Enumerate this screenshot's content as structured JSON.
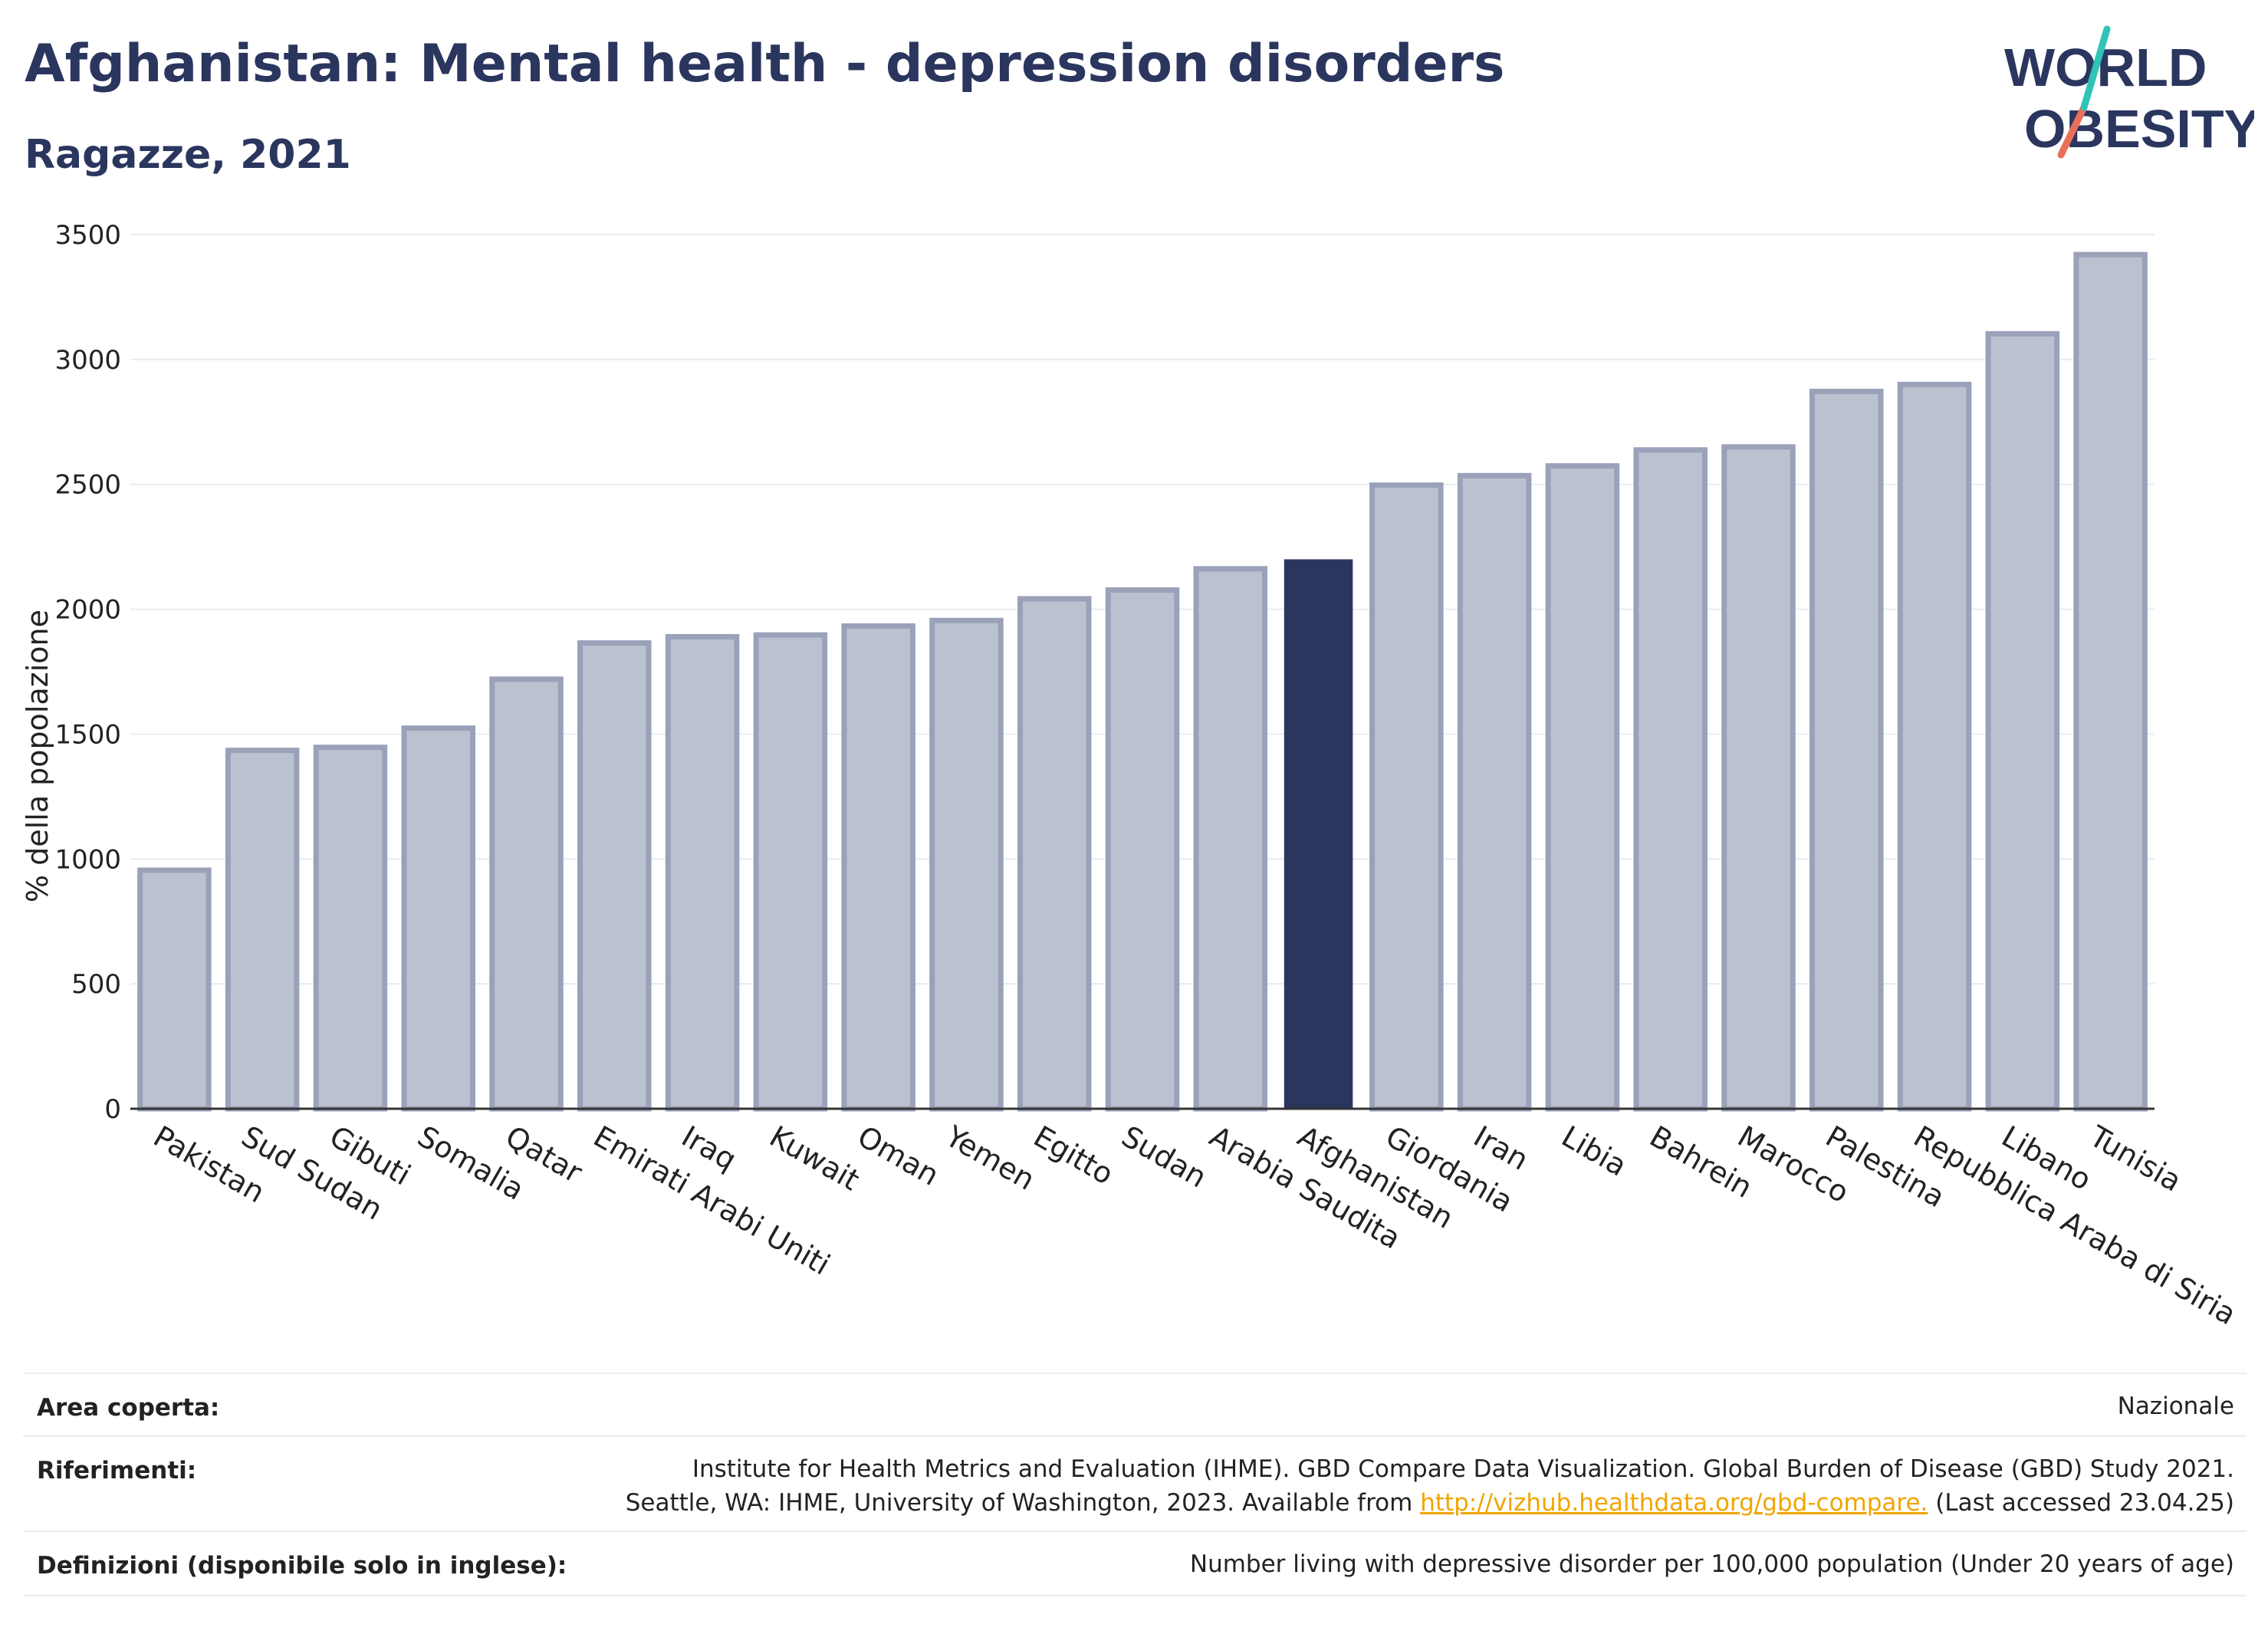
{
  "header": {
    "title": "Afghanistan: Mental health - depression disorders",
    "subtitle": "Ragazze, 2021"
  },
  "logo": {
    "line1": "WORLD",
    "line2": "OBESITY",
    "accent_teal": "#2ec4b6",
    "accent_coral": "#e8705a",
    "text_color": "#2b365f"
  },
  "chart_data": {
    "type": "bar",
    "title": "Afghanistan: Mental health - depression disorders",
    "subtitle": "Ragazze, 2021",
    "xlabel": "",
    "ylabel": "% della popolazione",
    "ylim": [
      0,
      3500
    ],
    "yticks": [
      0,
      500,
      1000,
      1500,
      2000,
      2500,
      3000,
      3500
    ],
    "grid": true,
    "highlight": "Afghanistan",
    "colors": {
      "bar": "#bcc1cf",
      "bar_border": "#9aa1b9",
      "highlight": "#2b365f"
    },
    "categories": [
      "Pakistan",
      "Sud Sudan",
      "Gibuti",
      "Somalia",
      "Qatar",
      "Emirati Arabi Uniti",
      "Iraq",
      "Kuwait",
      "Oman",
      "Yemen",
      "Egitto",
      "Sudan",
      "Arabia Saudita",
      "Afghanistan",
      "Giordania",
      "Iran",
      "Libia",
      "Bahrein",
      "Marocco",
      "Palestina",
      "Repubblica Araba di Siria",
      "Libano",
      "Tunisia"
    ],
    "values": [
      955,
      1435,
      1447,
      1524,
      1720,
      1865,
      1890,
      1897,
      1933,
      1955,
      2042,
      2077,
      2162,
      2200,
      2497,
      2535,
      2574,
      2638,
      2650,
      2872,
      2900,
      3103,
      3420
    ]
  },
  "info": {
    "rows": [
      {
        "key": "Area coperta:",
        "lines": [
          "Nazionale"
        ]
      },
      {
        "key": "Riferimenti:",
        "lines": [
          "Institute for Health Metrics and Evaluation (IHME). GBD Compare Data Visualization. Global Burden of Disease (GBD) Study 2021."
        ],
        "line2_pre": "Seattle, WA: IHME, University of Washington, 2023. Available from ",
        "link": "http://vizhub.healthdata.org/gbd-compare.",
        "line2_post": " (Last accessed 23.04.25)"
      },
      {
        "key": "Definizioni (disponibile solo in inglese):",
        "lines": [
          "Number living with depressive disorder per 100,000 population (Under 20 years of age)"
        ]
      }
    ]
  }
}
